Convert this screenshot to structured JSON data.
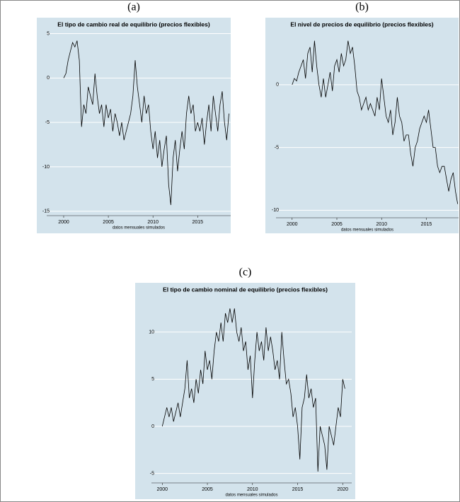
{
  "chart_data": [
    {
      "type": "line",
      "panel": "(a)",
      "title": "El tipo de cambio real de equilibrio (precios flexibles)",
      "xlabel": "datos mensuales simulados",
      "x": [
        2000,
        2000.25,
        2000.5,
        2000.75,
        2001,
        2001.25,
        2001.5,
        2001.75,
        2002,
        2002.25,
        2002.5,
        2002.75,
        2003,
        2003.25,
        2003.5,
        2003.75,
        2004,
        2004.25,
        2004.5,
        2004.75,
        2005,
        2005.25,
        2005.5,
        2005.75,
        2006,
        2006.25,
        2006.5,
        2006.75,
        2007,
        2007.25,
        2007.5,
        2007.75,
        2008,
        2008.25,
        2008.5,
        2008.75,
        2009,
        2009.25,
        2009.5,
        2009.75,
        2010,
        2010.25,
        2010.5,
        2010.75,
        2011,
        2011.25,
        2011.5,
        2011.75,
        2012,
        2012.25,
        2012.5,
        2012.75,
        2013,
        2013.25,
        2013.5,
        2013.75,
        2014,
        2014.25,
        2014.5,
        2014.75,
        2015,
        2015.25,
        2015.5,
        2015.75,
        2016,
        2016.25,
        2016.5,
        2016.75,
        2017,
        2017.25,
        2017.5,
        2017.75,
        2018,
        2018.25,
        2018.5
      ],
      "values": [
        0,
        0.5,
        2,
        3,
        4,
        3.5,
        4.2,
        2,
        -5.5,
        -3,
        -4,
        -1,
        -2,
        -3,
        0.5,
        -2,
        -4,
        -3,
        -5.5,
        -3,
        -4.5,
        -3.5,
        -6,
        -4,
        -5,
        -6.5,
        -5,
        -7,
        -6,
        -5,
        -4,
        -2,
        2,
        -1,
        -3,
        -5,
        -2,
        -4,
        -3,
        -6,
        -8,
        -6,
        -9,
        -7,
        -10,
        -8,
        -6.5,
        -12,
        -14.3,
        -9,
        -7,
        -10.5,
        -8,
        -6,
        -8,
        -4,
        -2,
        -4,
        -3,
        -6,
        -5,
        -6,
        -4.5,
        -7.5,
        -5,
        -3,
        -6,
        -2,
        -4,
        -6,
        -3,
        -1.5,
        -5,
        -7,
        -4
      ],
      "color": "#000000",
      "grid": true,
      "xlim": [
        1998.1,
        2018.7
      ],
      "xticks": [
        2000,
        2005,
        2010,
        2015
      ],
      "ylim": [
        -15.5,
        5.6
      ],
      "yticks": [
        -15,
        -10,
        -5,
        0,
        5
      ]
    },
    {
      "type": "line",
      "panel": "(b)",
      "title": "El nivel de precios de equilibrio (precios flexibles)",
      "xlabel": "datos mensuales simulados",
      "x": [
        2000,
        2000.25,
        2000.5,
        2000.75,
        2001,
        2001.25,
        2001.5,
        2001.75,
        2002,
        2002.25,
        2002.5,
        2002.75,
        2003,
        2003.25,
        2003.5,
        2003.75,
        2004,
        2004.25,
        2004.5,
        2004.75,
        2005,
        2005.25,
        2005.5,
        2005.75,
        2006,
        2006.25,
        2006.5,
        2006.75,
        2007,
        2007.25,
        2007.5,
        2007.75,
        2008,
        2008.25,
        2008.5,
        2008.75,
        2009,
        2009.25,
        2009.5,
        2009.75,
        2010,
        2010.25,
        2010.5,
        2010.75,
        2011,
        2011.25,
        2011.5,
        2011.75,
        2012,
        2012.25,
        2012.5,
        2012.75,
        2013,
        2013.25,
        2013.5,
        2013.75,
        2014,
        2014.25,
        2014.5,
        2014.75,
        2015,
        2015.25,
        2015.5,
        2015.75,
        2016,
        2016.25,
        2016.5,
        2016.75,
        2017,
        2017.25,
        2017.5,
        2017.75,
        2018,
        2018.25,
        2018.5
      ],
      "values": [
        0,
        0.5,
        0.3,
        1,
        1.5,
        2,
        0.5,
        2.5,
        3,
        1,
        3.5,
        1.5,
        0,
        -1,
        0.5,
        -1,
        0,
        1,
        -0.5,
        1.5,
        2,
        1,
        2.5,
        1.5,
        2,
        3.5,
        2.5,
        3,
        1.5,
        -0.5,
        -1,
        -2,
        -1.5,
        -1,
        -2,
        -1.5,
        -2,
        -2.5,
        -1,
        -2,
        0.5,
        -1,
        -2.5,
        -3,
        -2,
        -4,
        -3,
        -1,
        -2.5,
        -3,
        -4.5,
        -4,
        -4,
        -5.5,
        -6.5,
        -5,
        -4.5,
        -3.5,
        -3,
        -2.5,
        -3,
        -2,
        -3.5,
        -5,
        -5,
        -6.5,
        -7,
        -6.5,
        -6.5,
        -7.5,
        -8.5,
        -7.5,
        -7,
        -8.5,
        -9.5
      ],
      "color": "#000000",
      "grid": true,
      "xlim": [
        1998.2,
        2018.6
      ],
      "xticks": [
        2000,
        2005,
        2010,
        2015
      ],
      "ylim": [
        -10.6,
        4.5
      ],
      "yticks": [
        -10,
        -5,
        0
      ]
    },
    {
      "type": "line",
      "panel": "(c)",
      "title": "El tipo de cambio nominal de equilibrio (precios flexibles)",
      "xlabel": "datos mensuales simulados",
      "x": [
        2000,
        2000.25,
        2000.5,
        2000.75,
        2001,
        2001.25,
        2001.5,
        2001.75,
        2002,
        2002.25,
        2002.5,
        2002.75,
        2003,
        2003.25,
        2003.5,
        2003.75,
        2004,
        2004.25,
        2004.5,
        2004.75,
        2005,
        2005.25,
        2005.5,
        2005.75,
        2006,
        2006.25,
        2006.5,
        2006.75,
        2007,
        2007.25,
        2007.5,
        2007.75,
        2008,
        2008.25,
        2008.5,
        2008.75,
        2009,
        2009.25,
        2009.5,
        2009.75,
        2010,
        2010.25,
        2010.5,
        2010.75,
        2011,
        2011.25,
        2011.5,
        2011.75,
        2012,
        2012.25,
        2012.5,
        2012.75,
        2013,
        2013.25,
        2013.5,
        2013.75,
        2014,
        2014.25,
        2014.5,
        2014.75,
        2015,
        2015.25,
        2015.5,
        2015.75,
        2016,
        2016.25,
        2016.5,
        2016.75,
        2017,
        2017.25,
        2017.5,
        2017.75,
        2018,
        2018.25,
        2018.5,
        2018.75,
        2019,
        2019.25,
        2019.5,
        2019.75,
        2020,
        2020.25
      ],
      "values": [
        0,
        1,
        2,
        1,
        2,
        0.5,
        1.5,
        2.5,
        1,
        2.5,
        4,
        7,
        3,
        4,
        2.5,
        5,
        3.5,
        6,
        4.5,
        8,
        6,
        7,
        5,
        8,
        10,
        9,
        11,
        9,
        12,
        11,
        12.5,
        11,
        12.5,
        10,
        9,
        10.5,
        8,
        9,
        6,
        7.5,
        3,
        7,
        10,
        8,
        9,
        7,
        10.5,
        8,
        9.5,
        8,
        6,
        7,
        5,
        10,
        7,
        4.5,
        5,
        3.5,
        1,
        2,
        0,
        -3.5,
        2,
        3,
        5.5,
        3,
        4,
        2,
        3,
        -4.8,
        0,
        -1,
        -2,
        -4.6,
        0,
        -1,
        -2,
        0,
        2,
        1,
        5,
        4
      ],
      "color": "#000000",
      "grid": true,
      "xlim": [
        1998.8,
        2021.0
      ],
      "xticks": [
        2000,
        2005,
        2010,
        2015,
        2020
      ],
      "ylim": [
        -6,
        13.2
      ],
      "yticks": [
        -5,
        0,
        5,
        10
      ]
    }
  ]
}
